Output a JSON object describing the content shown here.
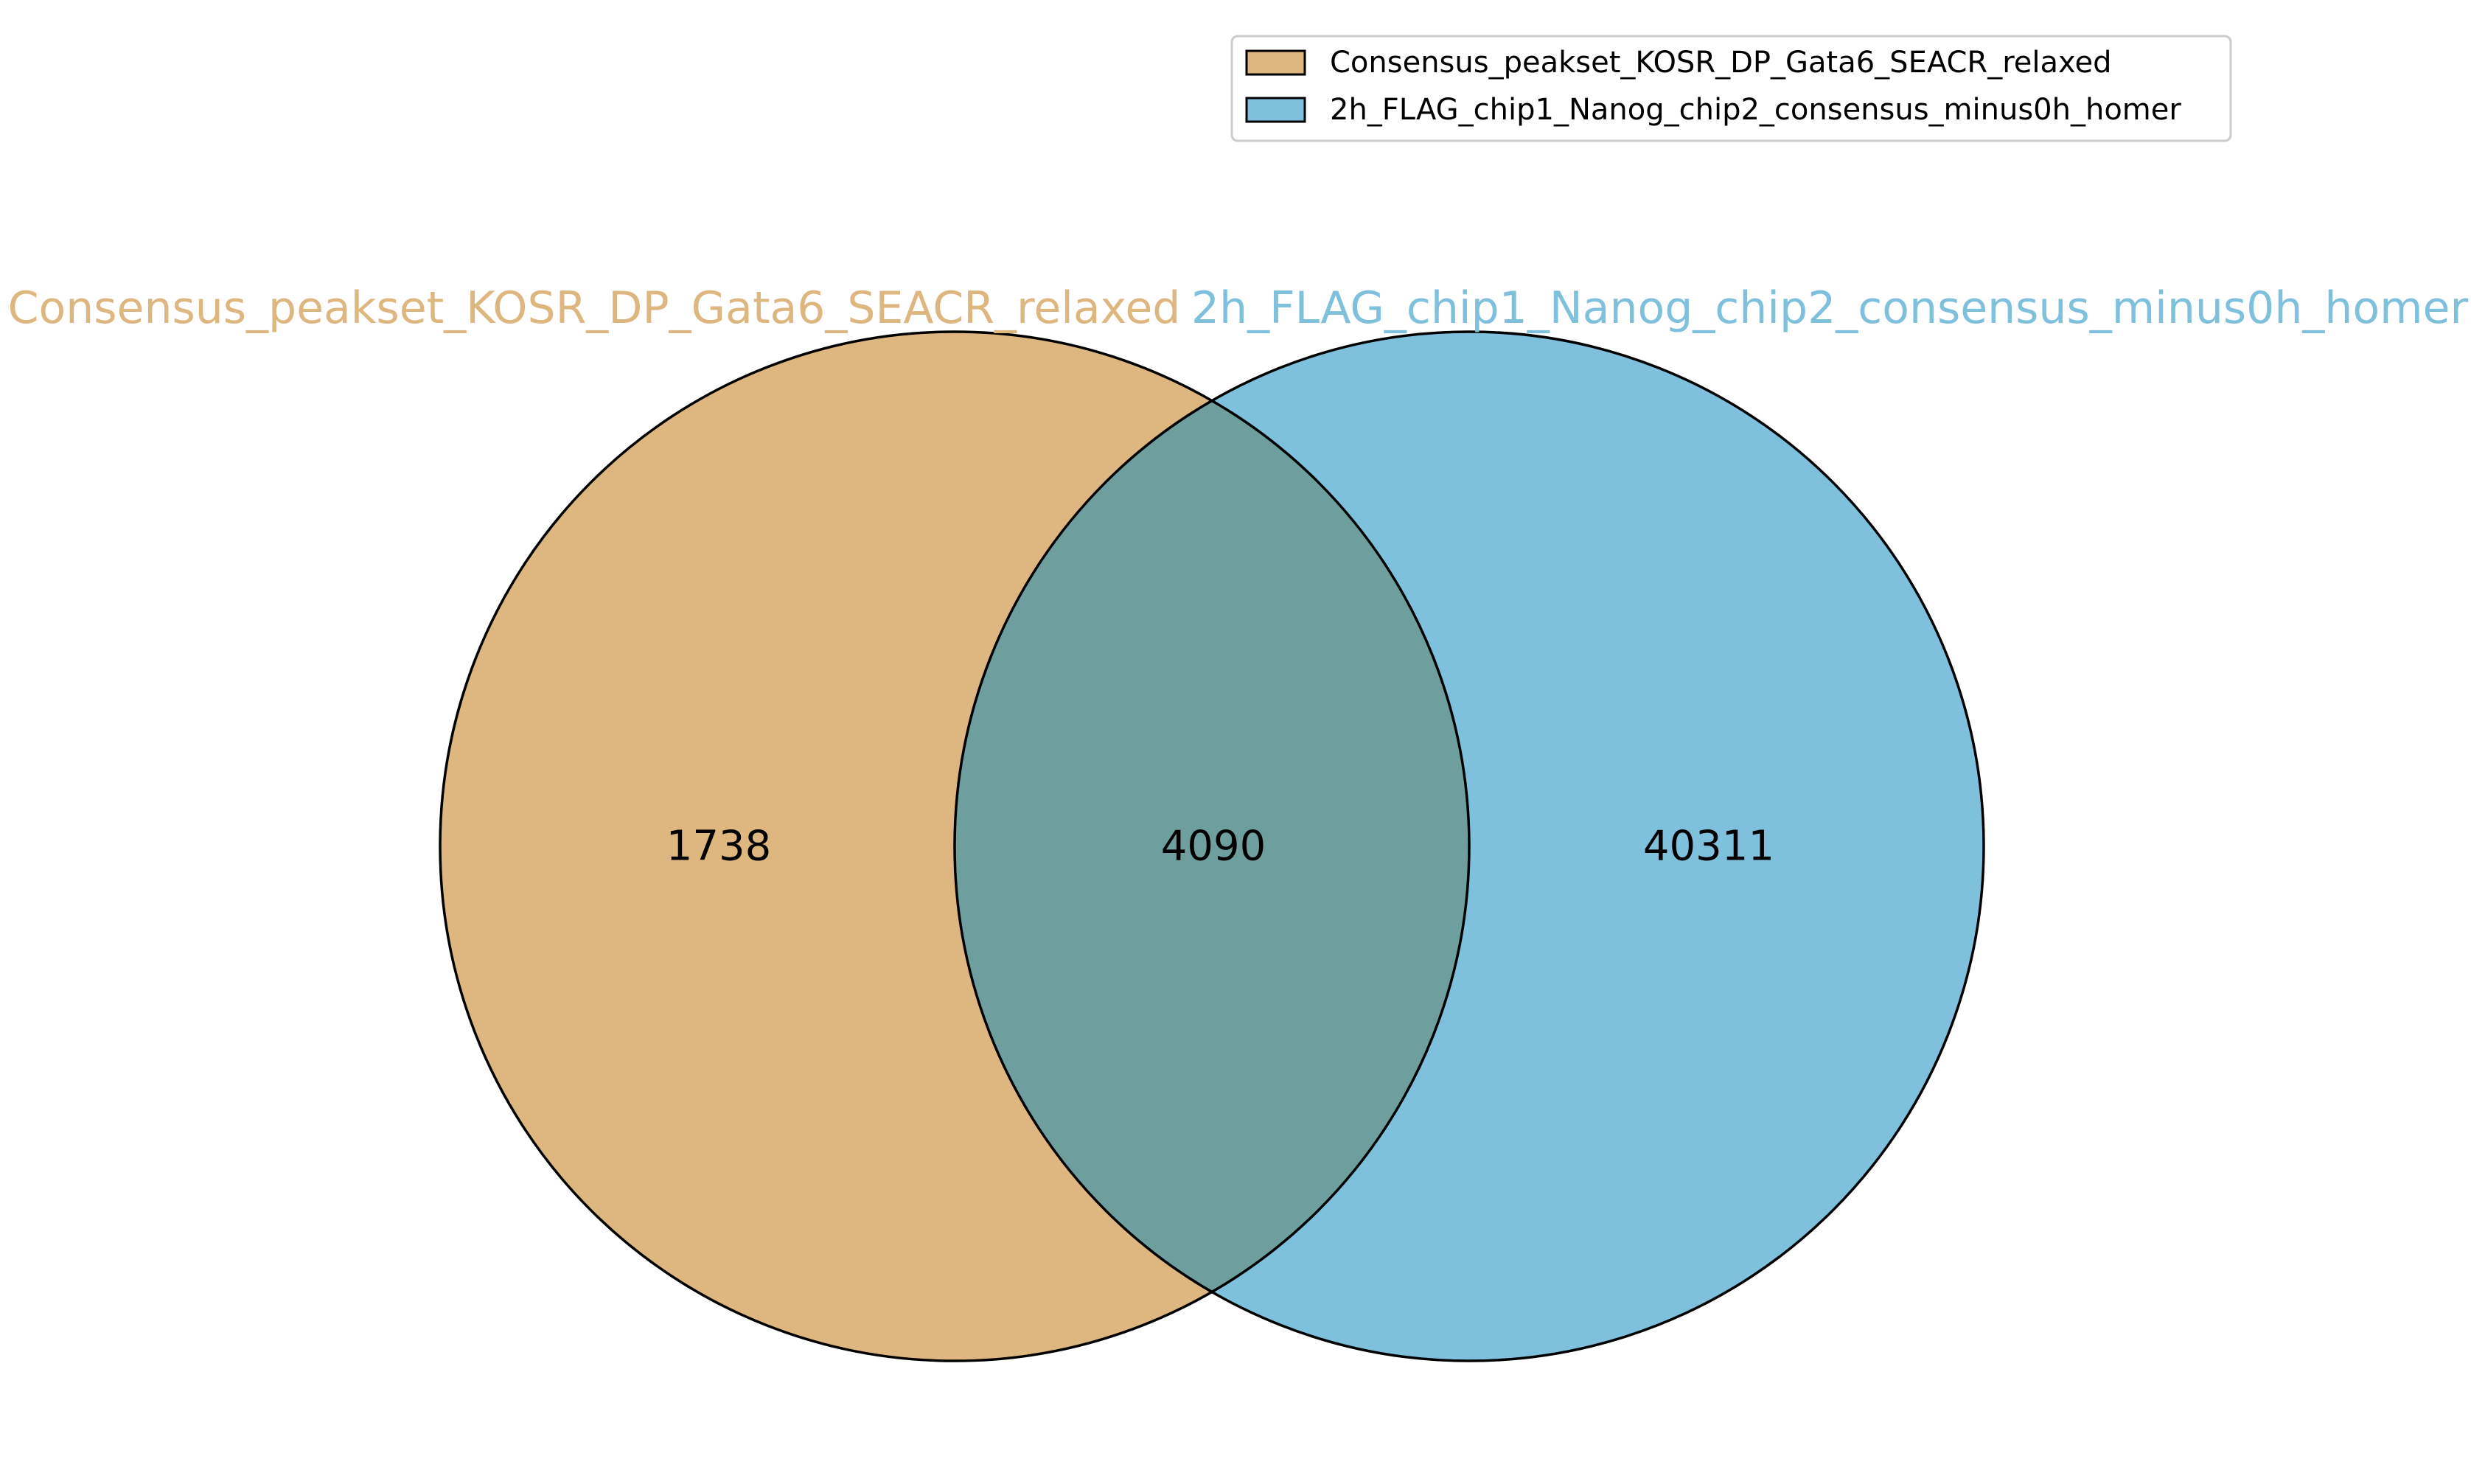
{
  "chart_data": {
    "type": "venn",
    "sets": [
      {
        "name": "Consensus_peakset_KOSR_DP_Gata6_SEACR_relaxed",
        "color": "#DDB77F"
      },
      {
        "name": "2h_FLAG_chip1_Nanog_chip2_consensus_minus0h_homer",
        "color": "#7FC0DD"
      }
    ],
    "overlap_color": "#6F9E9E",
    "regions": {
      "only_a": 1738,
      "both": 4090,
      "only_b": 40311
    },
    "legend": {
      "placement": "top-right",
      "entries": [
        "Consensus_peakset_KOSR_DP_Gata6_SEACR_relaxed",
        "2h_FLAG_chip1_Nanog_chip2_consensus_minus0h_homer"
      ]
    }
  }
}
